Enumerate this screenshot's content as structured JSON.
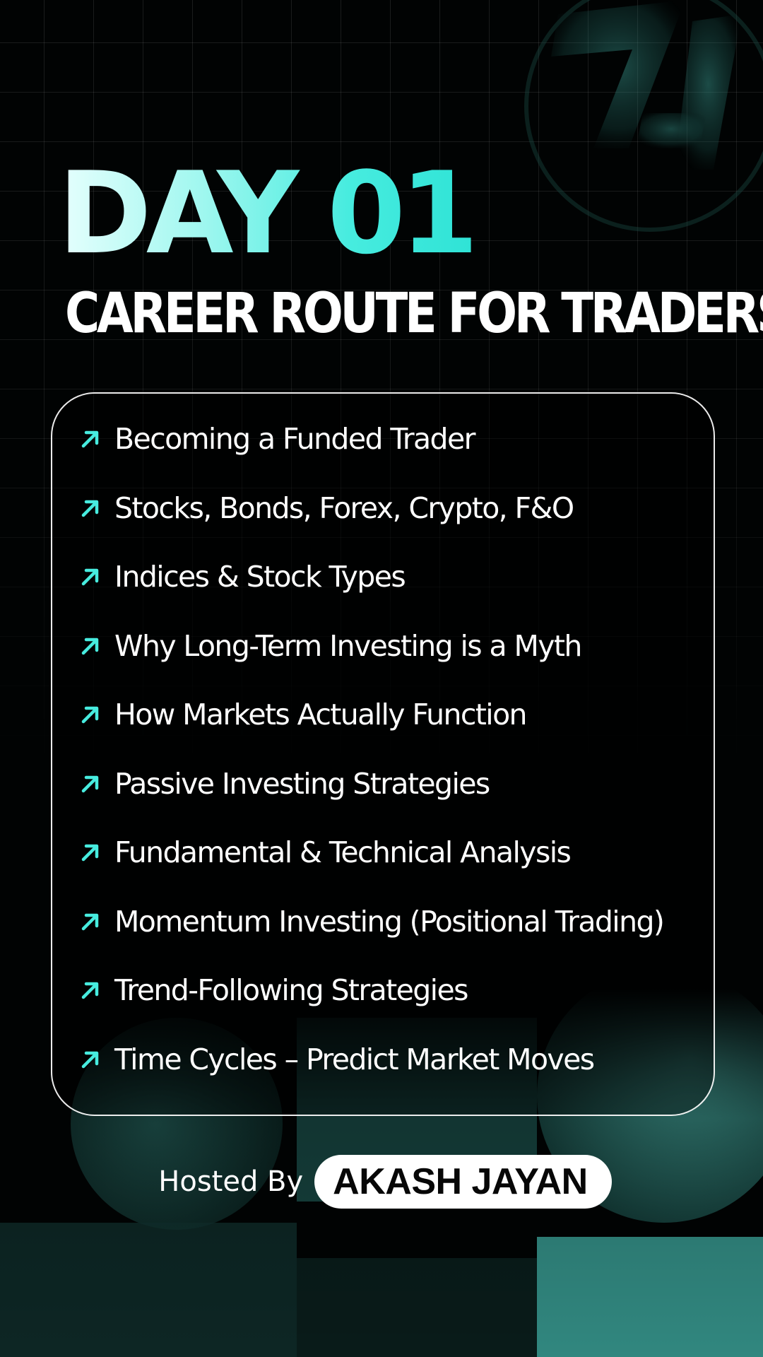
{
  "header": {
    "day_title": "DAY 01",
    "subtitle": "CAREER ROUTE FOR TRADERS"
  },
  "topics": {
    "arrow_icon": "arrow-up-right-icon",
    "items": [
      "Becoming a Funded Trader",
      "Stocks, Bonds, Forex, Crypto, F&O",
      "Indices & Stock Types",
      "Why Long-Term Investing is a Myth",
      "How Markets Actually Function",
      "Passive Investing Strategies",
      "Fundamental & Technical Analysis",
      "Momentum Investing (Positional Trading)",
      "Trend-Following Strategies",
      "Time Cycles – Predict Market Moves"
    ]
  },
  "host": {
    "label": "Hosted By",
    "name": "AKASH JAYAN"
  },
  "colors": {
    "background": "#010303",
    "accent": "#47ecdf",
    "accent_light": "#e6fffd",
    "deco_teal": "#2f8f86",
    "text": "#ffffff",
    "pill_bg": "#ffffff",
    "pill_text": "#070707"
  }
}
